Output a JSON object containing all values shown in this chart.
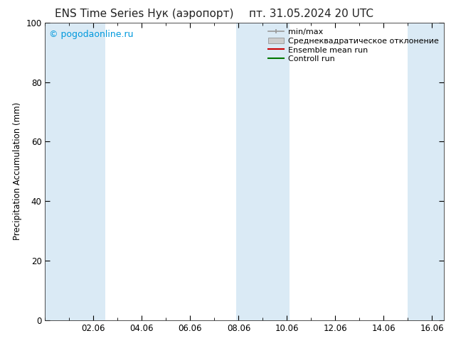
{
  "title_left": "ENS Time Series Нук (аэропорт)",
  "title_right": "пт. 31.05.2024 20 UTC",
  "ylabel": "Precipitation Accumulation (mm)",
  "ylim": [
    0,
    100
  ],
  "yticks": [
    0,
    20,
    40,
    60,
    80,
    100
  ],
  "xlim_start": 0.0,
  "xlim_end": 16.5,
  "xtick_labels": [
    "02.06",
    "04.06",
    "06.06",
    "08.06",
    "10.06",
    "12.06",
    "14.06",
    "16.06"
  ],
  "xtick_positions": [
    2,
    4,
    6,
    8,
    10,
    12,
    14,
    16
  ],
  "watermark": "© pogodaonline.ru",
  "watermark_color": "#0099dd",
  "bg_color": "#ffffff",
  "plot_bg_color": "#ffffff",
  "shaded_bands": [
    {
      "x_start": 0.0,
      "x_end": 1.0,
      "color": "#daeaf5"
    },
    {
      "x_start": 1.0,
      "x_end": 2.5,
      "color": "#daeaf5"
    },
    {
      "x_start": 7.9,
      "x_end": 10.1,
      "color": "#daeaf5"
    },
    {
      "x_start": 15.0,
      "x_end": 16.5,
      "color": "#daeaf5"
    }
  ],
  "legend_items": [
    {
      "label": "min/max",
      "color": "#999999",
      "type": "errorbar"
    },
    {
      "label": "Среднеквадратическое отклонение",
      "color": "#cccccc",
      "type": "band"
    },
    {
      "label": "Ensemble mean run",
      "color": "#cc0000",
      "type": "line"
    },
    {
      "label": "Controll run",
      "color": "#007700",
      "type": "line"
    }
  ],
  "title_fontsize": 11,
  "tick_fontsize": 8.5,
  "label_fontsize": 8.5,
  "legend_fontsize": 8
}
